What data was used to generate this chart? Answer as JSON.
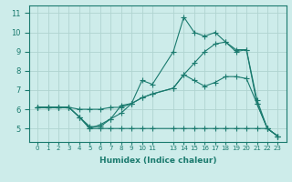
{
  "xlabel": "Humidex (Indice chaleur)",
  "background_color": "#cdecea",
  "grid_color": "#b0d4d0",
  "line_color": "#1a7a6e",
  "x": [
    0,
    1,
    2,
    3,
    4,
    5,
    6,
    7,
    8,
    9,
    10,
    11,
    13,
    14,
    15,
    16,
    17,
    18,
    19,
    20,
    21,
    22,
    23
  ],
  "line1": [
    6.1,
    6.1,
    6.1,
    6.1,
    5.6,
    5.0,
    5.2,
    5.5,
    6.2,
    6.3,
    7.5,
    7.3,
    9.0,
    10.8,
    10.0,
    9.8,
    10.0,
    9.5,
    9.1,
    9.1,
    6.3,
    5.0,
    4.6
  ],
  "line2": [
    6.1,
    6.1,
    6.1,
    6.1,
    5.6,
    5.1,
    5.1,
    5.5,
    5.8,
    6.3,
    6.6,
    6.8,
    7.1,
    7.8,
    7.5,
    7.2,
    7.4,
    7.7,
    7.7,
    7.6,
    6.3,
    5.0,
    4.6
  ],
  "line3": [
    6.1,
    6.1,
    6.1,
    6.1,
    6.0,
    6.0,
    6.0,
    6.1,
    6.1,
    6.3,
    6.6,
    6.8,
    7.1,
    7.8,
    8.4,
    9.0,
    9.4,
    9.5,
    9.0,
    9.1,
    6.5,
    5.0,
    4.6
  ],
  "line4": [
    6.1,
    6.1,
    6.1,
    6.1,
    5.6,
    5.0,
    5.0,
    5.0,
    5.0,
    5.0,
    5.0,
    5.0,
    5.0,
    5.0,
    5.0,
    5.0,
    5.0,
    5.0,
    5.0,
    5.0,
    5.0,
    5.0,
    4.6
  ],
  "ylim": [
    4.3,
    11.4
  ],
  "yticks": [
    5,
    6,
    7,
    8,
    9,
    10,
    11
  ],
  "xtick_positions": [
    0,
    1,
    2,
    3,
    4,
    5,
    6,
    7,
    8,
    9,
    10,
    11,
    13,
    14,
    15,
    16,
    17,
    18,
    19,
    20,
    21,
    22,
    23
  ],
  "xtick_labels": [
    "0",
    "1",
    "2",
    "3",
    "4",
    "5",
    "6",
    "7",
    "8",
    "9",
    "10",
    "11",
    "13",
    "14",
    "15",
    "16",
    "17",
    "18",
    "19",
    "20",
    "21",
    "22",
    "23"
  ]
}
